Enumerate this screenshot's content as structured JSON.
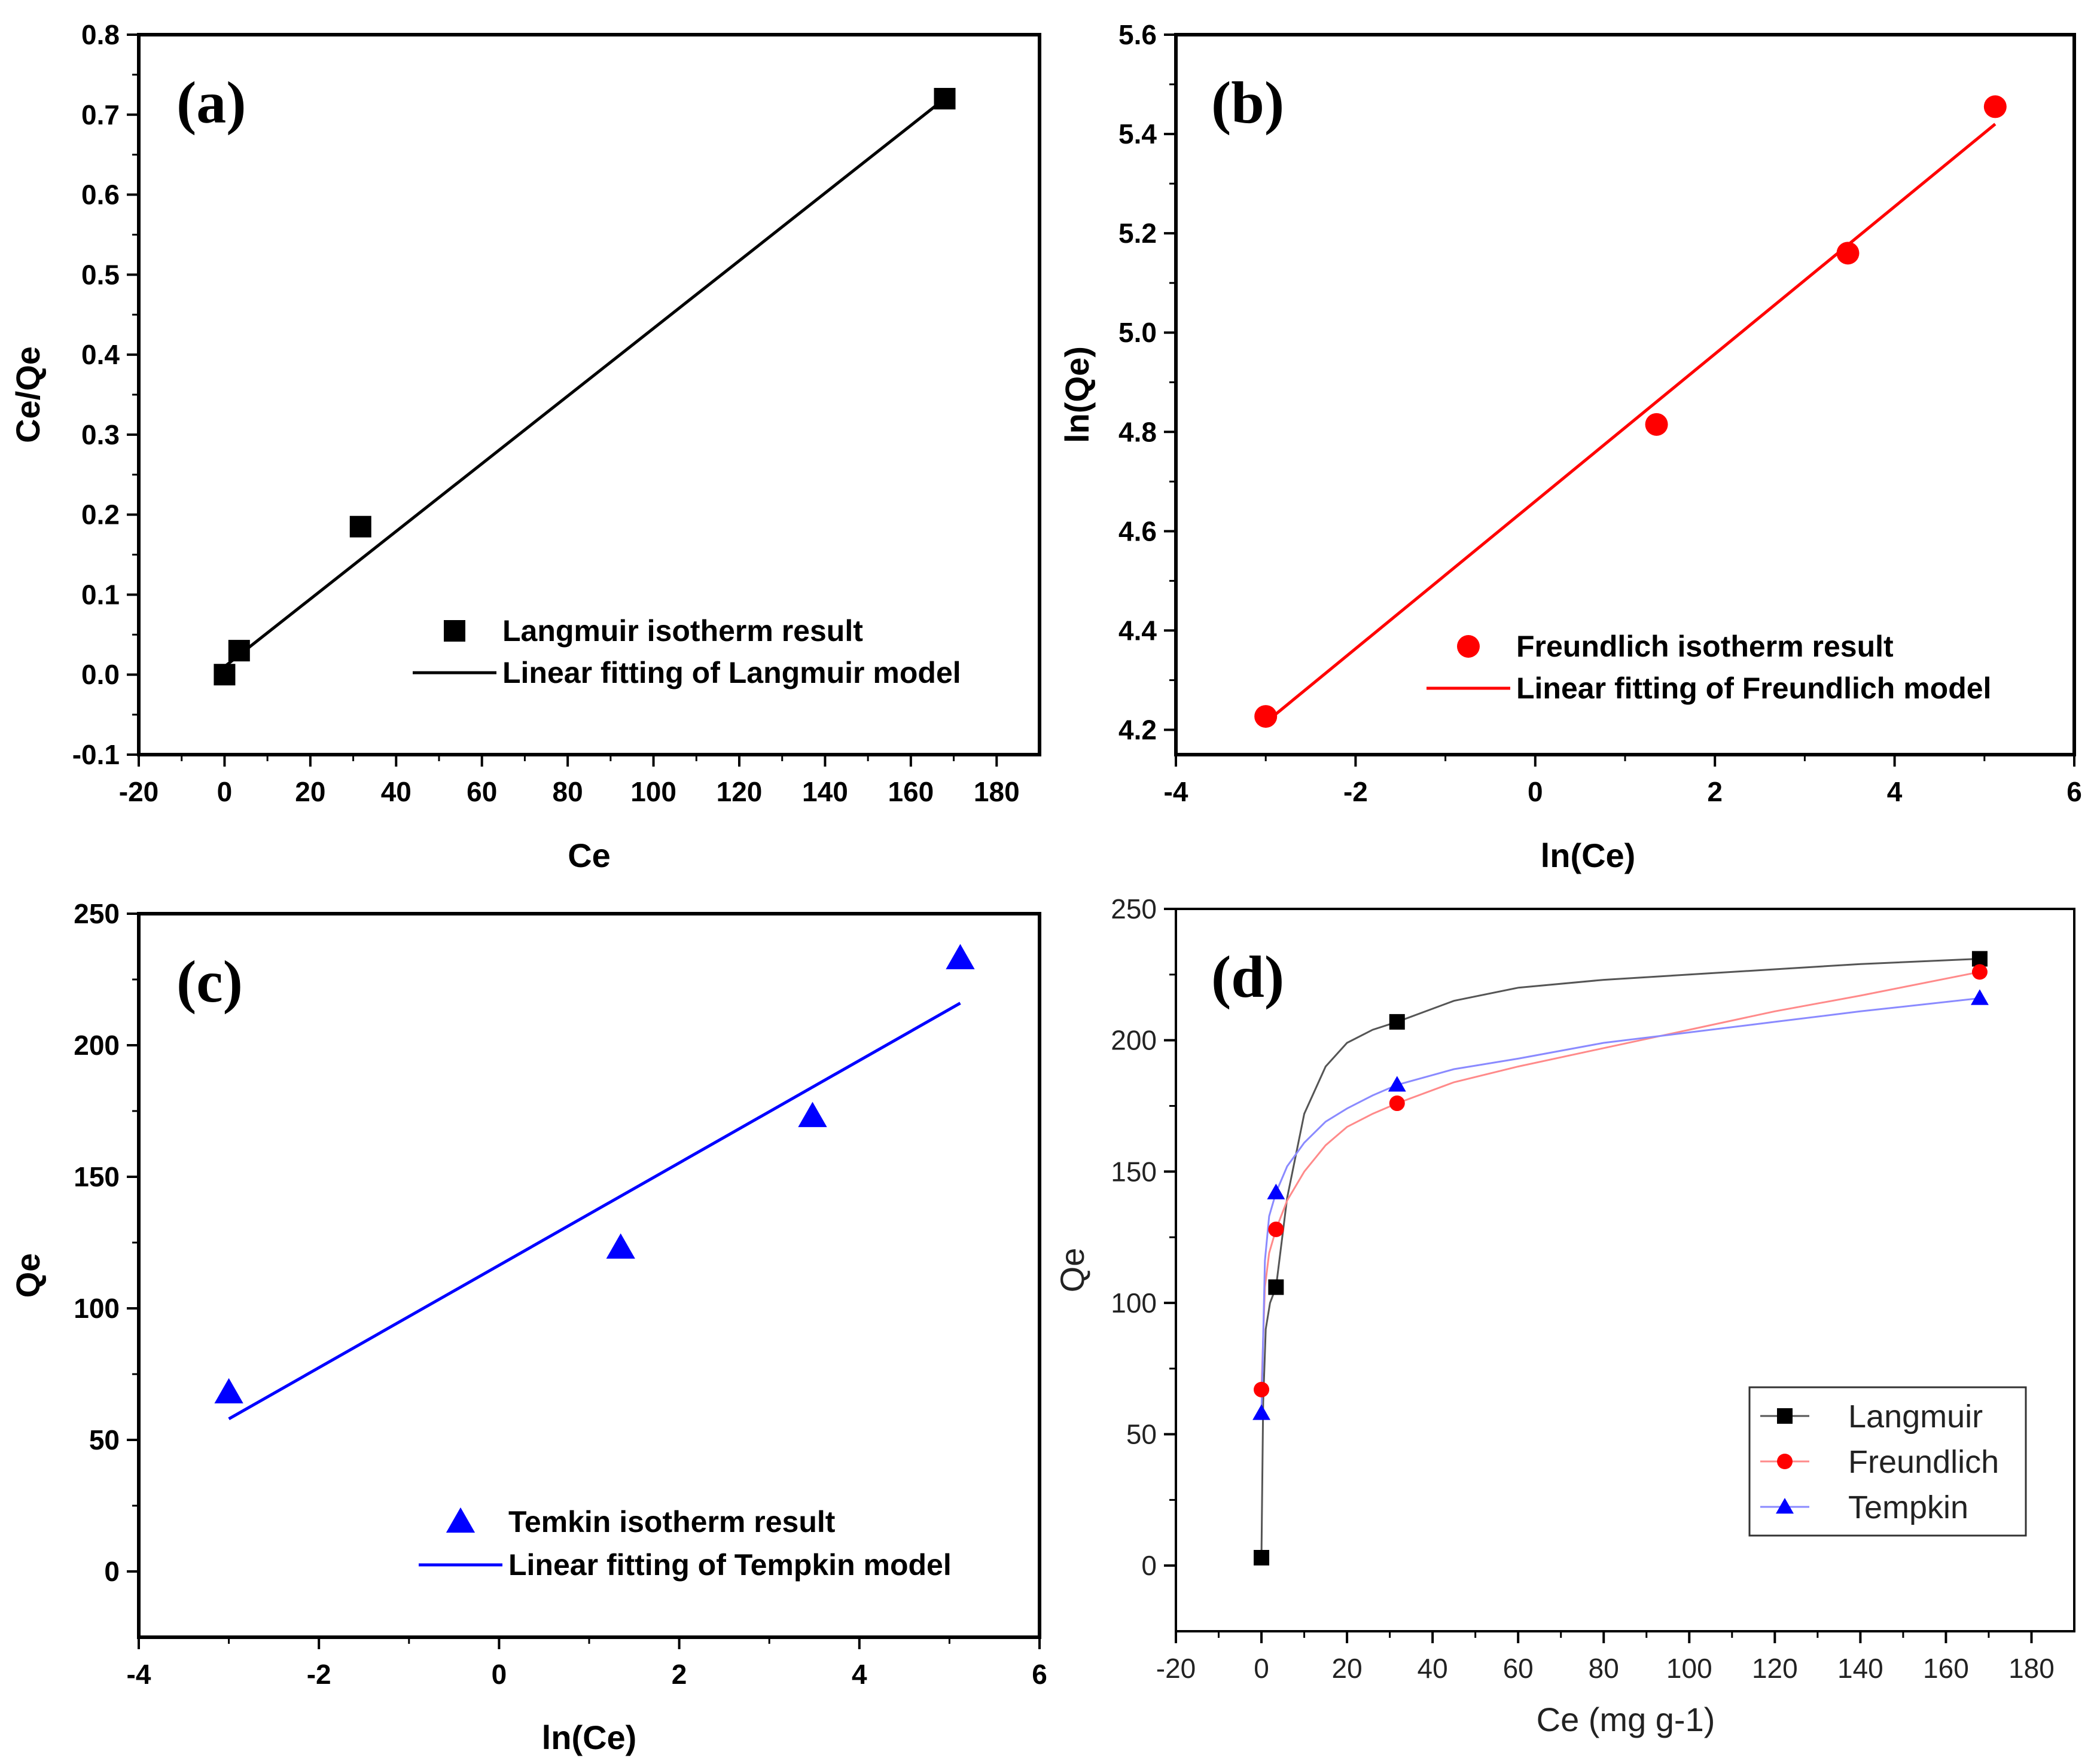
{
  "chart_data": [
    {
      "id": "a",
      "type": "scatter",
      "panel_label": "(a)",
      "xlabel": "Ce",
      "ylabel": "Ce/Qe",
      "xlim": [
        -20,
        190
      ],
      "ylim": [
        -0.1,
        0.8
      ],
      "xticks": [
        "-20",
        "0",
        "20",
        "40",
        "60",
        "80",
        "100",
        "120",
        "140",
        "160",
        "180"
      ],
      "yticks": [
        "-0.1",
        "0.0",
        "0.1",
        "0.2",
        "0.3",
        "0.4",
        "0.5",
        "0.6",
        "0.7",
        "0.8"
      ],
      "legend": "bottom-right",
      "series": [
        {
          "name": "Langmuir isotherm result",
          "kind": "scatter",
          "marker": "square",
          "color": "#000000",
          "x": [
            0,
            3.4,
            31.7,
            167.9
          ],
          "y": [
            0.0,
            0.03,
            0.185,
            0.72
          ]
        },
        {
          "name": "Linear fitting of Langmuir model",
          "kind": "line",
          "color": "#000000",
          "x": [
            0,
            167.9
          ],
          "y": [
            0.01,
            0.72
          ]
        }
      ]
    },
    {
      "id": "b",
      "type": "scatter",
      "panel_label": "(b)",
      "xlabel": "ln(Ce)",
      "ylabel": "ln(Qe)",
      "xlim": [
        -4,
        6
      ],
      "ylim": [
        4.15,
        5.6
      ],
      "xticks": [
        "-4",
        "-2",
        "0",
        "2",
        "4",
        "6"
      ],
      "yticks": [
        "4.2",
        "4.4",
        "4.6",
        "4.8",
        "5.0",
        "5.2",
        "5.4",
        "5.6"
      ],
      "legend": "bottom-right",
      "series": [
        {
          "name": "Freundlich isotherm result",
          "kind": "scatter",
          "marker": "circle",
          "color": "#ff0000",
          "x": [
            -3.0,
            1.35,
            3.48,
            5.12
          ],
          "y": [
            4.227,
            4.815,
            5.16,
            5.455
          ]
        },
        {
          "name": "Linear fitting of Freundlich model",
          "kind": "line",
          "color": "#ff0000",
          "x": [
            -3.0,
            5.12
          ],
          "y": [
            4.215,
            5.42
          ]
        }
      ]
    },
    {
      "id": "c",
      "type": "scatter",
      "panel_label": "(c)",
      "xlabel": "ln(Ce)",
      "ylabel": "Qe",
      "xlim": [
        -4,
        6
      ],
      "ylim": [
        -25,
        250
      ],
      "xticks": [
        "-4",
        "-2",
        "0",
        "2",
        "4",
        "6"
      ],
      "yticks": [
        "0",
        "50",
        "100",
        "150",
        "200",
        "250"
      ],
      "legend": "bottom-right",
      "series": [
        {
          "name": "Temkin isotherm result",
          "kind": "scatter",
          "marker": "triangle",
          "color": "#0000ff",
          "x": [
            -3.0,
            1.35,
            3.48,
            5.12
          ],
          "y": [
            68,
            123,
            173,
            233
          ]
        },
        {
          "name": "Linear fitting of Tempkin model",
          "kind": "line",
          "color": "#0000ff",
          "x": [
            -3.0,
            5.12
          ],
          "y": [
            58,
            216
          ]
        }
      ]
    },
    {
      "id": "d",
      "type": "line",
      "panel_label": "(d)",
      "xlabel": "Ce (mg g-1)",
      "ylabel": "Qe",
      "xlim": [
        -20,
        190
      ],
      "ylim": [
        -25,
        250
      ],
      "xticks": [
        "-20",
        "0",
        "20",
        "40",
        "60",
        "80",
        "100",
        "120",
        "140",
        "160",
        "180"
      ],
      "yticks": [
        "0",
        "50",
        "100",
        "150",
        "200",
        "250"
      ],
      "legend": "bottom-right",
      "series": [
        {
          "name": "Langmuir",
          "marker": "square",
          "color": "#000000",
          "x": [
            0,
            3.4,
            31.7,
            167.9
          ],
          "y": [
            3,
            106,
            207,
            231
          ],
          "curve_x": [
            0,
            0.4,
            1.0,
            2.0,
            3.4,
            6,
            10,
            15,
            20,
            26,
            31.7,
            45,
            60,
            80,
            100,
            120,
            140,
            167.9
          ],
          "curve_y": [
            3,
            62,
            90,
            100,
            106,
            140,
            172,
            190,
            199,
            204,
            207,
            215,
            220,
            223,
            225,
            227,
            229,
            231
          ]
        },
        {
          "name": "Freundlich",
          "marker": "circle",
          "color": "#ff0000",
          "x": [
            0,
            3.4,
            31.7,
            167.9
          ],
          "y": [
            67,
            128,
            176,
            226
          ],
          "curve_x": [
            0,
            0.8,
            1.8,
            3.4,
            6,
            10,
            15,
            20,
            26,
            31.7,
            45,
            60,
            80,
            100,
            120,
            140,
            167.9
          ],
          "curve_y": [
            67,
            106,
            119,
            128,
            139,
            150,
            160,
            167,
            172,
            176,
            184,
            190,
            197,
            204,
            211,
            217,
            226
          ]
        },
        {
          "name": "Tempkin",
          "marker": "triangle",
          "color": "#0000ff",
          "x": [
            0,
            3.4,
            31.7,
            167.9
          ],
          "y": [
            58,
            142,
            183,
            216
          ],
          "curve_x": [
            0,
            0.8,
            1.8,
            3.4,
            6,
            10,
            15,
            20,
            26,
            31.7,
            45,
            60,
            80,
            100,
            120,
            140,
            167.9
          ],
          "curve_y": [
            58,
            116,
            133,
            142,
            152,
            161,
            169,
            174,
            179,
            183,
            189,
            193,
            199,
            203,
            207,
            211,
            216
          ]
        }
      ]
    }
  ]
}
